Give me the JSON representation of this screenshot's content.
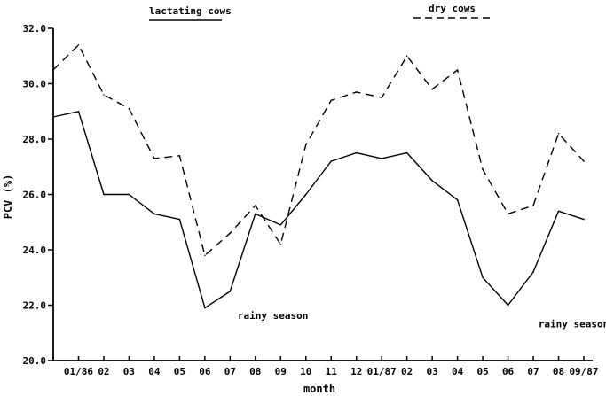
{
  "chart_data": {
    "type": "line",
    "title": "",
    "xlabel": "month",
    "ylabel": "PCV (%)",
    "ylim": [
      20.0,
      32.0
    ],
    "yticks": [
      "20.0",
      "22.0",
      "24.0",
      "26.0",
      "28.0",
      "30.0",
      "32.0"
    ],
    "categories": [
      "",
      "01/86",
      "02",
      "03",
      "04",
      "05",
      "06",
      "07",
      "08",
      "09",
      "10",
      "11",
      "12",
      "01/87",
      "02",
      "03",
      "04",
      "05",
      "06",
      "07",
      "08",
      "09/87"
    ],
    "series": [
      {
        "name": "lactating cows",
        "style": "solid",
        "values": [
          28.8,
          29.0,
          26.0,
          26.0,
          25.3,
          25.1,
          21.9,
          22.5,
          25.3,
          24.9,
          26.0,
          27.2,
          27.5,
          27.3,
          27.5,
          26.5,
          25.8,
          23.0,
          22.0,
          23.2,
          25.4,
          25.1
        ]
      },
      {
        "name": "dry cows",
        "style": "dashed",
        "values": [
          30.5,
          31.4,
          29.6,
          29.1,
          27.3,
          27.4,
          23.8,
          24.6,
          25.6,
          24.2,
          27.8,
          29.4,
          29.7,
          29.5,
          31.0,
          29.8,
          30.5,
          26.9,
          25.3,
          25.6,
          28.2,
          27.2
        ]
      }
    ],
    "annotations": [
      {
        "text": "rainy season",
        "index": 7.3,
        "value": 21.5
      },
      {
        "text": "rainy season",
        "index": 19.2,
        "value": 21.2
      }
    ],
    "grid": false,
    "legend_position": "top"
  }
}
